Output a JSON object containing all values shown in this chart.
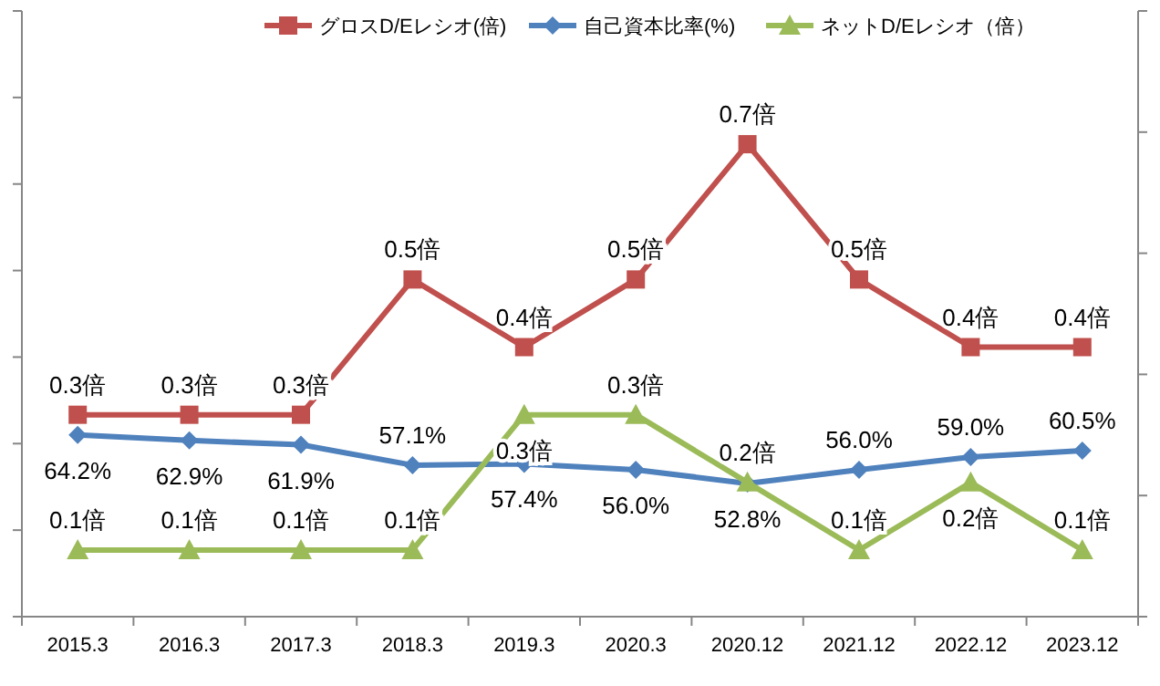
{
  "chart_data": {
    "type": "line",
    "categories": [
      "2015.3",
      "2016.3",
      "2017.3",
      "2018.3",
      "2019.3",
      "2020.3",
      "2020.12",
      "2021.12",
      "2022.12",
      "2023.12"
    ],
    "series": [
      {
        "name": "グロスD/Eレシオ(倍)",
        "color": "#c0504d",
        "marker": "square",
        "values": [
          0.3,
          0.3,
          0.3,
          0.5,
          0.4,
          0.5,
          0.7,
          0.5,
          0.4,
          0.4
        ],
        "value_labels": [
          "0.3倍",
          "0.3倍",
          "0.3倍",
          "0.5倍",
          "0.4倍",
          "0.5倍",
          "0.7倍",
          "0.5倍",
          "0.4倍",
          "0.4倍"
        ]
      },
      {
        "name": "自己資本比率(%)",
        "color": "#4f81bd",
        "marker": "diamond",
        "axis": "y2",
        "values": [
          64.2,
          62.9,
          61.9,
          57.1,
          57.4,
          56.0,
          52.8,
          56.0,
          59.0,
          60.5
        ],
        "value_labels": [
          "64.2%",
          "62.9%",
          "61.9%",
          "57.1%",
          "57.4%",
          "56.0%",
          "52.8%",
          "56.0%",
          "59.0%",
          "60.5%"
        ]
      },
      {
        "name": "ネットD/Eレシオ（倍）",
        "color": "#9bbb59",
        "marker": "triangle",
        "values": [
          0.1,
          0.1,
          0.1,
          0.1,
          0.3,
          0.3,
          0.2,
          0.1,
          0.2,
          0.1
        ],
        "value_labels": [
          "0.1倍",
          "0.1倍",
          "0.1倍",
          "0.1倍",
          "0.3倍",
          "0.3倍",
          "0.2倍",
          "0.1倍",
          "0.2倍",
          "0.1倍"
        ]
      }
    ],
    "tick_labels": "x",
    "legend": "top"
  }
}
